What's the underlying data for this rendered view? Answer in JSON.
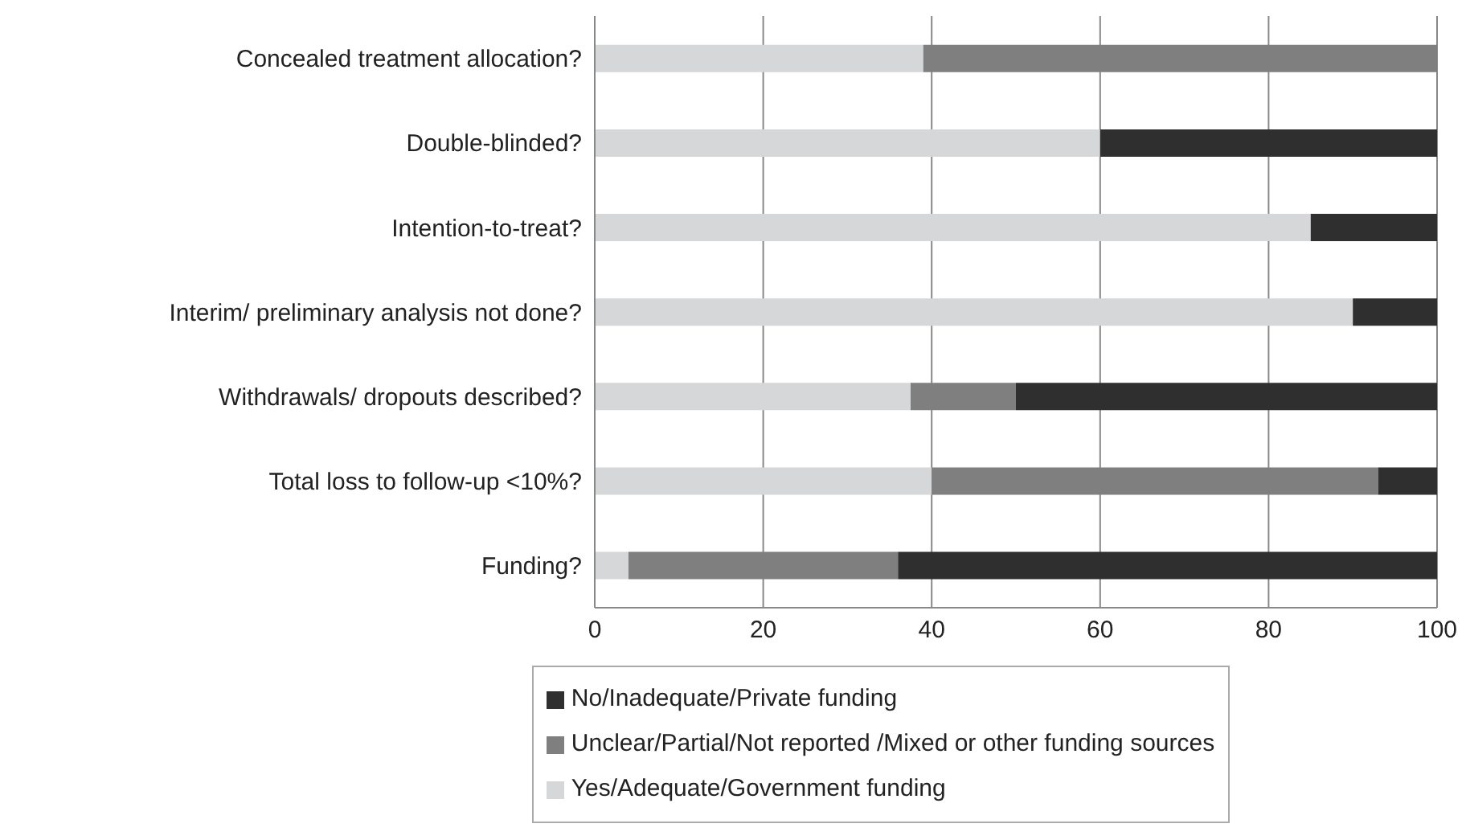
{
  "chart_data": {
    "type": "bar",
    "orientation": "horizontal",
    "stacked": true,
    "categories": [
      "Concealed treatment allocation?",
      "Double-blinded?",
      "Intention-to-treat?",
      "Interim/ preliminary analysis not done?",
      "Withdrawals/ dropouts described?",
      "Total loss to follow-up <10%?",
      "Funding?"
    ],
    "series": [
      {
        "name": "Yes/Adequate/Government funding",
        "color": "#d6d7d8",
        "values": [
          39,
          60,
          85,
          90,
          37.5,
          40,
          4
        ]
      },
      {
        "name": "Unclear/Partial/Not reported /Mixed or other funding sources",
        "color": "#7f7f7f",
        "values": [
          61,
          0,
          0,
          0,
          12.5,
          53,
          32
        ]
      },
      {
        "name": "No/Inadequate/Private funding",
        "color": "#2f2f2f",
        "values": [
          0,
          40,
          15,
          10,
          50,
          7,
          64
        ]
      }
    ],
    "xlim": [
      0,
      100
    ],
    "xticks": [
      0,
      20,
      40,
      60,
      80,
      100
    ],
    "grid": "x",
    "legend": "bottom"
  }
}
